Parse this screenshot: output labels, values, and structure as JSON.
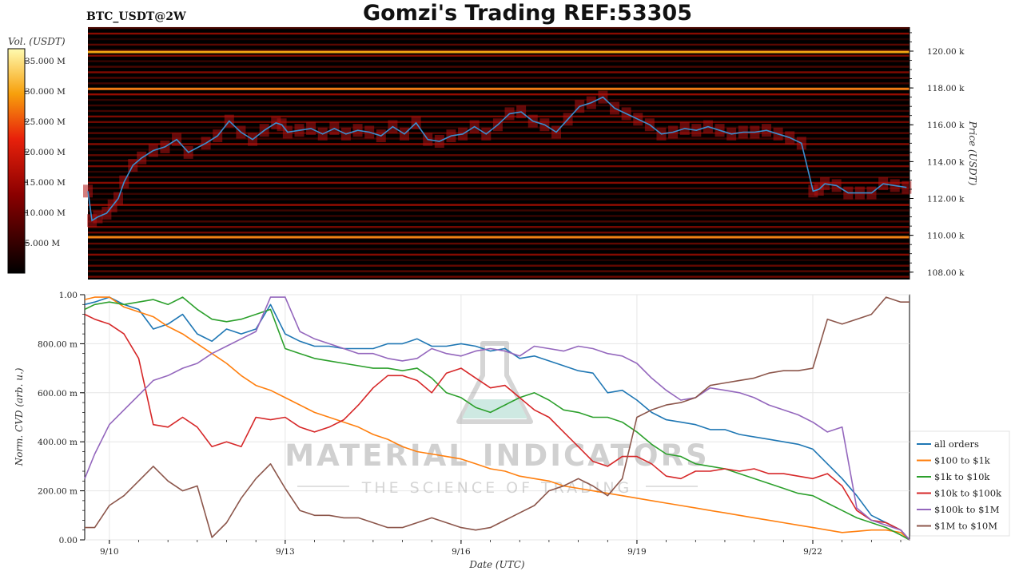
{
  "header": {
    "pair_label": "BTC_USDT@2W",
    "title": "Gomzi's Trading REF:53305"
  },
  "watermark": {
    "line1": "MATERIAL INDICATORS",
    "line2": "THE SCIENCE OF TRADING"
  },
  "chart_data": [
    {
      "type": "heatmap",
      "name": "order-book-heatmap",
      "colorbar_label": "Vol. (USDT)",
      "colorbar_ticks": [
        "35.000 M",
        "30.000 M",
        "25.000 M",
        "20.000 M",
        "15.000 M",
        "10.000 M",
        "5.000 M"
      ],
      "colorbar_values": [
        35,
        30,
        25,
        20,
        15,
        10,
        5
      ],
      "colorbar_range": [
        0,
        37
      ],
      "ylabel": "Price (USDT)",
      "yticks": [
        "120.00 k",
        "118.00 k",
        "116.00 k",
        "114.00 k",
        "112.00 k",
        "110.00 k",
        "108.00 k"
      ],
      "ytick_values": [
        120000,
        118000,
        116000,
        114000,
        112000,
        110000,
        108000
      ],
      "ylim": [
        107600,
        121300
      ],
      "bright_levels": [
        {
          "price": 119950,
          "intensity": 0.75
        },
        {
          "price": 117950,
          "intensity": 0.45
        },
        {
          "price": 109900,
          "intensity": 0.5
        }
      ],
      "price_series": {
        "name": "price",
        "color": "#3a8fd0",
        "x": [
          9.58,
          9.65,
          9.75,
          9.9,
          10.0,
          10.1,
          10.2,
          10.35,
          10.5,
          10.7,
          10.9,
          11.1,
          11.3,
          11.6,
          11.8,
          12.0,
          12.2,
          12.4,
          12.6,
          12.8,
          12.9,
          13.0,
          13.2,
          13.4,
          13.6,
          13.8,
          14.0,
          14.2,
          14.4,
          14.6,
          14.8,
          15.0,
          15.2,
          15.4,
          15.6,
          15.8,
          16.0,
          16.2,
          16.4,
          16.6,
          16.8,
          17.0,
          17.2,
          17.4,
          17.6,
          17.8,
          18.0,
          18.2,
          18.4,
          18.6,
          18.8,
          19.0,
          19.2,
          19.4,
          19.6,
          19.8,
          20.0,
          20.2,
          20.4,
          20.6,
          20.8,
          21.0,
          21.2,
          21.4,
          21.6,
          21.8,
          22.0,
          22.1,
          22.2,
          22.4,
          22.6,
          22.8,
          23.0,
          23.2,
          23.4,
          23.6
        ],
        "y": [
          112400,
          110800,
          111000,
          111200,
          111600,
          112000,
          112900,
          113800,
          114200,
          114600,
          114800,
          115200,
          114500,
          115000,
          115400,
          116200,
          115600,
          115200,
          115700,
          116100,
          116000,
          115600,
          115700,
          115800,
          115500,
          115800,
          115500,
          115700,
          115600,
          115400,
          115900,
          115500,
          116100,
          115200,
          115100,
          115400,
          115500,
          115900,
          115500,
          116000,
          116600,
          116700,
          116200,
          116000,
          115600,
          116300,
          117000,
          117200,
          117500,
          116900,
          116600,
          116300,
          116000,
          115500,
          115600,
          115800,
          115700,
          115900,
          115700,
          115500,
          115600,
          115600,
          115700,
          115500,
          115300,
          115000,
          112400,
          112500,
          112800,
          112700,
          112300,
          112300,
          112300,
          112800,
          112700,
          112600
        ]
      }
    },
    {
      "type": "line",
      "name": "normalized-cvd",
      "xlabel": "Date (UTC)",
      "ylabel": "Norm. CVD (arb. u.)",
      "xticks": [
        "9/10",
        "9/13",
        "9/16",
        "9/19",
        "9/22"
      ],
      "xtick_values": [
        10,
        13,
        16,
        19,
        22
      ],
      "xlim": [
        9.58,
        23.65
      ],
      "yticks": [
        "0.00",
        "200.00 m",
        "400.00 m",
        "600.00 m",
        "800.00 m",
        "1.00"
      ],
      "ytick_values": [
        0,
        0.2,
        0.4,
        0.6,
        0.8,
        1.0
      ],
      "ylim": [
        0,
        1.0
      ],
      "grid": true,
      "legend_position": "right",
      "x": [
        9.58,
        9.75,
        10.0,
        10.25,
        10.5,
        10.75,
        11.0,
        11.25,
        11.5,
        11.75,
        12.0,
        12.25,
        12.5,
        12.75,
        13.0,
        13.25,
        13.5,
        13.75,
        14.0,
        14.25,
        14.5,
        14.75,
        15.0,
        15.25,
        15.5,
        15.75,
        16.0,
        16.25,
        16.5,
        16.75,
        17.0,
        17.25,
        17.5,
        17.75,
        18.0,
        18.25,
        18.5,
        18.75,
        19.0,
        19.25,
        19.5,
        19.75,
        20.0,
        20.25,
        20.5,
        20.75,
        21.0,
        21.25,
        21.5,
        21.75,
        22.0,
        22.25,
        22.5,
        22.75,
        23.0,
        23.25,
        23.5,
        23.65
      ],
      "series": [
        {
          "name": "all orders",
          "color": "#1f77b4",
          "values": [
            0.96,
            0.97,
            0.99,
            0.96,
            0.94,
            0.86,
            0.88,
            0.92,
            0.84,
            0.81,
            0.86,
            0.84,
            0.86,
            0.96,
            0.84,
            0.81,
            0.79,
            0.79,
            0.78,
            0.78,
            0.78,
            0.8,
            0.8,
            0.82,
            0.79,
            0.79,
            0.8,
            0.79,
            0.77,
            0.78,
            0.74,
            0.75,
            0.73,
            0.71,
            0.69,
            0.68,
            0.6,
            0.61,
            0.57,
            0.52,
            0.49,
            0.48,
            0.47,
            0.45,
            0.45,
            0.43,
            0.42,
            0.41,
            0.4,
            0.39,
            0.37,
            0.31,
            0.25,
            0.18,
            0.1,
            0.07,
            0.04,
            0.0
          ]
        },
        {
          "name": "$100 to $1k",
          "color": "#ff7f0e",
          "values": [
            0.98,
            0.99,
            0.99,
            0.95,
            0.93,
            0.91,
            0.87,
            0.84,
            0.8,
            0.76,
            0.72,
            0.67,
            0.63,
            0.61,
            0.58,
            0.55,
            0.52,
            0.5,
            0.48,
            0.46,
            0.43,
            0.41,
            0.38,
            0.36,
            0.35,
            0.34,
            0.33,
            0.31,
            0.29,
            0.28,
            0.26,
            0.25,
            0.24,
            0.22,
            0.21,
            0.2,
            0.19,
            0.18,
            0.17,
            0.16,
            0.15,
            0.14,
            0.13,
            0.12,
            0.11,
            0.1,
            0.09,
            0.08,
            0.07,
            0.06,
            0.05,
            0.04,
            0.03,
            0.035,
            0.04,
            0.04,
            0.03,
            0.0
          ]
        },
        {
          "name": "$1k to $10k",
          "color": "#2ca02c",
          "values": [
            0.94,
            0.96,
            0.97,
            0.96,
            0.97,
            0.98,
            0.96,
            0.99,
            0.94,
            0.9,
            0.89,
            0.9,
            0.92,
            0.94,
            0.78,
            0.76,
            0.74,
            0.73,
            0.72,
            0.71,
            0.7,
            0.7,
            0.69,
            0.7,
            0.66,
            0.6,
            0.58,
            0.54,
            0.52,
            0.55,
            0.58,
            0.6,
            0.57,
            0.53,
            0.52,
            0.5,
            0.5,
            0.48,
            0.44,
            0.39,
            0.35,
            0.34,
            0.31,
            0.3,
            0.29,
            0.27,
            0.25,
            0.23,
            0.21,
            0.19,
            0.18,
            0.15,
            0.12,
            0.09,
            0.07,
            0.05,
            0.02,
            0.0
          ]
        },
        {
          "name": "$10k to $100k",
          "color": "#d62728",
          "values": [
            0.92,
            0.9,
            0.88,
            0.84,
            0.74,
            0.47,
            0.46,
            0.5,
            0.46,
            0.38,
            0.4,
            0.38,
            0.5,
            0.49,
            0.5,
            0.46,
            0.44,
            0.46,
            0.49,
            0.55,
            0.62,
            0.67,
            0.67,
            0.65,
            0.6,
            0.68,
            0.7,
            0.66,
            0.62,
            0.63,
            0.58,
            0.53,
            0.5,
            0.44,
            0.38,
            0.32,
            0.3,
            0.34,
            0.34,
            0.31,
            0.26,
            0.25,
            0.28,
            0.28,
            0.29,
            0.28,
            0.29,
            0.27,
            0.27,
            0.26,
            0.25,
            0.27,
            0.22,
            0.12,
            0.08,
            0.07,
            0.04,
            0.0
          ]
        },
        {
          "name": "$100k to $1M",
          "color": "#9467bd",
          "values": [
            0.25,
            0.35,
            0.47,
            0.53,
            0.59,
            0.65,
            0.67,
            0.7,
            0.72,
            0.76,
            0.79,
            0.82,
            0.85,
            0.99,
            0.99,
            0.85,
            0.82,
            0.8,
            0.78,
            0.76,
            0.76,
            0.74,
            0.73,
            0.74,
            0.78,
            0.76,
            0.75,
            0.77,
            0.78,
            0.77,
            0.75,
            0.79,
            0.78,
            0.77,
            0.79,
            0.78,
            0.76,
            0.75,
            0.72,
            0.66,
            0.61,
            0.57,
            0.58,
            0.62,
            0.61,
            0.6,
            0.58,
            0.55,
            0.53,
            0.51,
            0.48,
            0.44,
            0.46,
            0.13,
            0.08,
            0.06,
            0.04,
            0.0
          ]
        },
        {
          "name": "$1M to $10M",
          "color": "#8c564b",
          "values": [
            0.05,
            0.05,
            0.14,
            0.18,
            0.24,
            0.3,
            0.24,
            0.2,
            0.22,
            0.01,
            0.07,
            0.17,
            0.25,
            0.31,
            0.21,
            0.12,
            0.1,
            0.1,
            0.09,
            0.09,
            0.07,
            0.05,
            0.05,
            0.07,
            0.09,
            0.07,
            0.05,
            0.04,
            0.05,
            0.08,
            0.11,
            0.14,
            0.2,
            0.22,
            0.25,
            0.22,
            0.18,
            0.25,
            0.5,
            0.53,
            0.55,
            0.56,
            0.58,
            0.63,
            0.64,
            0.65,
            0.66,
            0.68,
            0.69,
            0.69,
            0.7,
            0.9,
            0.88,
            0.9,
            0.92,
            0.99,
            0.97,
            0.97
          ]
        }
      ]
    }
  ]
}
